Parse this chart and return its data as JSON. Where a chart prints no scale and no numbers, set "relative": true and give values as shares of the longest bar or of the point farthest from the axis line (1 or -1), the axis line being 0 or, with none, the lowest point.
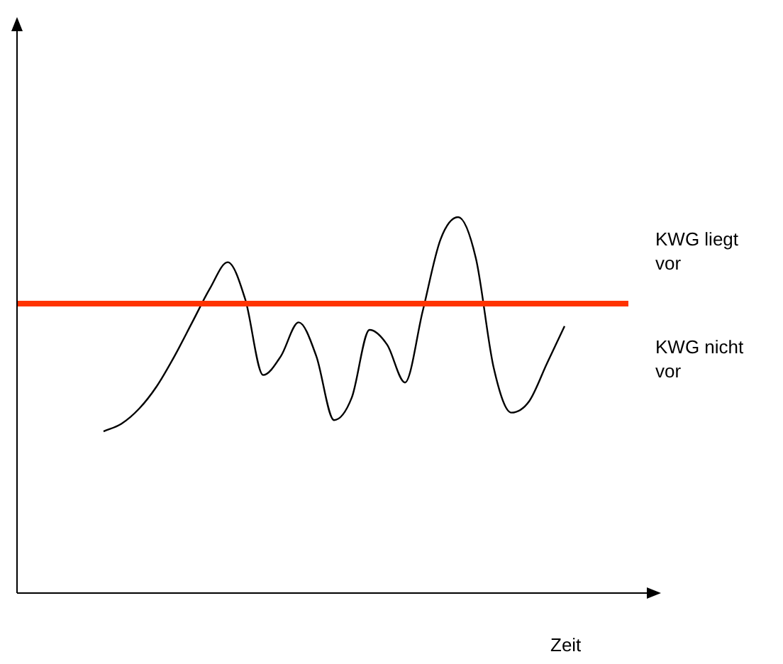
{
  "chart_data": {
    "type": "line",
    "relative": true,
    "xlabel": "Zeit",
    "grid": false,
    "legend": false,
    "categories": [
      null,
      null,
      null,
      null,
      null,
      null,
      null,
      null,
      null,
      null,
      null,
      null,
      null,
      null,
      null,
      null,
      null,
      null,
      null,
      null,
      null,
      null,
      null,
      null,
      null,
      null,
      null
    ],
    "series": [
      {
        "color": "#000000",
        "values": [
          0.43,
          0.45,
          0.49,
          0.55,
          0.63,
          0.72,
          0.81,
          0.88,
          0.78,
          0.58,
          0.63,
          0.72,
          0.63,
          0.46,
          0.52,
          0.7,
          0.66,
          0.56,
          0.75,
          0.94,
          1,
          0.89,
          0.6,
          0.48,
          0.51,
          0.61,
          0.71
        ]
      }
    ],
    "ref_lines": [
      {
        "axis": "y",
        "value": 0.77,
        "color": "#ff3300"
      }
    ],
    "annotations": [
      "KWG liegt vor",
      "KWG nicht vor"
    ]
  }
}
